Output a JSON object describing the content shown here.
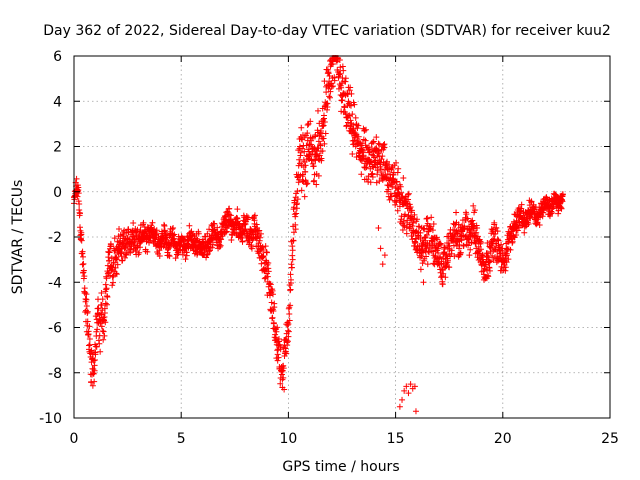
{
  "chart_data": {
    "type": "scatter",
    "title": "Day 362 of 2022, Sidereal Day-to-day VTEC variation (SDTVAR) for receiver kuu2",
    "xlabel": "GPS time / hours",
    "ylabel": "SDTVAR / TECUs",
    "xlim": [
      0,
      25
    ],
    "ylim": [
      -10,
      6
    ],
    "xticks": [
      0,
      5,
      10,
      15,
      20,
      25
    ],
    "yticks": [
      -10,
      -8,
      -6,
      -4,
      -2,
      0,
      2,
      4,
      6
    ],
    "xtick_labels": [
      "0",
      "5",
      "10",
      "15",
      "20",
      "25"
    ],
    "ytick_labels": [
      "-10",
      "-8",
      "-6",
      "-4",
      "-2",
      "0",
      "2",
      "4",
      "6"
    ],
    "grid": true,
    "marker": "+",
    "series": [
      {
        "name": "SDTVAR",
        "color": "#ff0000",
        "trace": [
          [
            0.0,
            -0.5
          ],
          [
            0.1,
            0.2
          ],
          [
            0.2,
            0.0
          ],
          [
            0.3,
            -1.5
          ],
          [
            0.4,
            -3.0
          ],
          [
            0.5,
            -4.5
          ],
          [
            0.6,
            -5.5
          ],
          [
            0.7,
            -6.5
          ],
          [
            0.8,
            -7.5
          ],
          [
            0.9,
            -8.0
          ],
          [
            1.0,
            -7.0
          ],
          [
            1.1,
            -5.5
          ],
          [
            1.2,
            -6.5
          ],
          [
            1.3,
            -5.0
          ],
          [
            1.4,
            -6.0
          ],
          [
            1.5,
            -4.5
          ],
          [
            1.6,
            -3.5
          ],
          [
            1.7,
            -2.8
          ],
          [
            1.8,
            -3.5
          ],
          [
            1.9,
            -2.5
          ],
          [
            2.0,
            -3.0
          ],
          [
            2.1,
            -2.2
          ],
          [
            2.2,
            -2.8
          ],
          [
            2.3,
            -2.0
          ],
          [
            2.4,
            -2.6
          ],
          [
            2.5,
            -1.8
          ],
          [
            2.6,
            -2.4
          ],
          [
            2.8,
            -2.0
          ],
          [
            3.0,
            -2.5
          ],
          [
            3.2,
            -1.8
          ],
          [
            3.4,
            -2.2
          ],
          [
            3.6,
            -1.6
          ],
          [
            3.8,
            -2.0
          ],
          [
            4.0,
            -2.3
          ],
          [
            4.2,
            -1.9
          ],
          [
            4.4,
            -2.4
          ],
          [
            4.6,
            -2.0
          ],
          [
            4.8,
            -2.6
          ],
          [
            5.0,
            -2.2
          ],
          [
            5.2,
            -2.5
          ],
          [
            5.4,
            -2.0
          ],
          [
            5.6,
            -2.4
          ],
          [
            5.8,
            -2.2
          ],
          [
            6.0,
            -2.6
          ],
          [
            6.2,
            -2.3
          ],
          [
            6.4,
            -2.0
          ],
          [
            6.6,
            -1.8
          ],
          [
            6.8,
            -2.2
          ],
          [
            7.0,
            -1.5
          ],
          [
            7.2,
            -1.2
          ],
          [
            7.4,
            -1.6
          ],
          [
            7.6,
            -1.3
          ],
          [
            7.8,
            -1.8
          ],
          [
            8.0,
            -1.5
          ],
          [
            8.2,
            -2.0
          ],
          [
            8.4,
            -1.6
          ],
          [
            8.6,
            -2.2
          ],
          [
            8.8,
            -2.8
          ],
          [
            9.0,
            -3.5
          ],
          [
            9.1,
            -4.2
          ],
          [
            9.2,
            -4.8
          ],
          [
            9.3,
            -5.5
          ],
          [
            9.4,
            -6.2
          ],
          [
            9.5,
            -6.8
          ],
          [
            9.6,
            -7.4
          ],
          [
            9.7,
            -8.0
          ],
          [
            9.8,
            -7.6
          ],
          [
            9.9,
            -6.8
          ],
          [
            10.0,
            -5.5
          ],
          [
            10.1,
            -4.0
          ],
          [
            10.2,
            -2.5
          ],
          [
            10.3,
            -1.0
          ],
          [
            10.4,
            0.2
          ],
          [
            10.5,
            1.0
          ],
          [
            10.6,
            1.6
          ],
          [
            10.8,
            1.2
          ],
          [
            11.0,
            2.0
          ],
          [
            11.2,
            1.4
          ],
          [
            11.4,
            2.2
          ],
          [
            11.5,
            1.5
          ],
          [
            11.6,
            2.8
          ],
          [
            11.7,
            3.5
          ],
          [
            11.8,
            4.2
          ],
          [
            11.9,
            4.8
          ],
          [
            12.0,
            5.2
          ],
          [
            12.1,
            5.6
          ],
          [
            12.2,
            5.8
          ],
          [
            12.3,
            5.5
          ],
          [
            12.4,
            5.0
          ],
          [
            12.5,
            4.6
          ],
          [
            12.6,
            4.0
          ],
          [
            12.8,
            3.5
          ],
          [
            13.0,
            2.8
          ],
          [
            13.2,
            2.2
          ],
          [
            13.4,
            1.8
          ],
          [
            13.6,
            1.5
          ],
          [
            13.8,
            1.0
          ],
          [
            14.0,
            1.4
          ],
          [
            14.2,
            1.8
          ],
          [
            14.4,
            1.2
          ],
          [
            14.6,
            0.8
          ],
          [
            14.8,
            0.4
          ],
          [
            15.0,
            0.2
          ],
          [
            15.2,
            -0.2
          ],
          [
            15.4,
            -0.6
          ],
          [
            15.6,
            -1.0
          ],
          [
            15.8,
            -1.4
          ],
          [
            16.0,
            -2.0
          ],
          [
            16.2,
            -2.6
          ],
          [
            16.4,
            -2.2
          ],
          [
            16.6,
            -1.8
          ],
          [
            16.8,
            -2.4
          ],
          [
            17.0,
            -2.8
          ],
          [
            17.2,
            -3.4
          ],
          [
            17.4,
            -2.8
          ],
          [
            17.6,
            -2.2
          ],
          [
            17.8,
            -1.8
          ],
          [
            18.0,
            -2.4
          ],
          [
            18.2,
            -1.6
          ],
          [
            18.4,
            -2.0
          ],
          [
            18.6,
            -1.4
          ],
          [
            18.8,
            -2.2
          ],
          [
            19.0,
            -2.8
          ],
          [
            19.2,
            -3.4
          ],
          [
            19.4,
            -2.6
          ],
          [
            19.6,
            -2.0
          ],
          [
            19.8,
            -2.6
          ],
          [
            20.0,
            -3.2
          ],
          [
            20.2,
            -2.6
          ],
          [
            20.4,
            -1.8
          ],
          [
            20.6,
            -1.4
          ],
          [
            20.8,
            -1.0
          ],
          [
            21.0,
            -1.4
          ],
          [
            21.2,
            -1.0
          ],
          [
            21.4,
            -0.6
          ],
          [
            21.6,
            -1.2
          ],
          [
            21.8,
            -0.8
          ],
          [
            22.0,
            -0.4
          ],
          [
            22.2,
            -0.8
          ],
          [
            22.4,
            -0.3
          ],
          [
            22.6,
            -0.6
          ],
          [
            22.8,
            -0.3
          ]
        ],
        "spread": [
          [
            0.0,
            0.4
          ],
          [
            1.0,
            1.4
          ],
          [
            2.0,
            0.9
          ],
          [
            4.0,
            0.6
          ],
          [
            6.0,
            0.6
          ],
          [
            8.0,
            0.7
          ],
          [
            9.5,
            1.2
          ],
          [
            10.5,
            1.6
          ],
          [
            12.0,
            1.6
          ],
          [
            14.0,
            1.4
          ],
          [
            15.5,
            1.3
          ],
          [
            17.0,
            1.0
          ],
          [
            19.0,
            1.1
          ],
          [
            21.0,
            0.6
          ],
          [
            23.0,
            0.4
          ]
        ],
        "outliers": [
          [
            15.2,
            -9.5
          ],
          [
            15.3,
            -9.2
          ],
          [
            15.4,
            -8.8
          ],
          [
            15.5,
            -8.6
          ],
          [
            15.6,
            -8.9
          ],
          [
            15.7,
            -8.5
          ],
          [
            15.8,
            -8.7
          ],
          [
            15.9,
            -8.6
          ],
          [
            15.95,
            -9.7
          ],
          [
            14.2,
            -1.6
          ],
          [
            14.3,
            -2.5
          ],
          [
            14.4,
            -3.2
          ],
          [
            14.5,
            -2.8
          ],
          [
            16.3,
            -4.0
          ],
          [
            16.5,
            -3.2
          ]
        ]
      }
    ]
  }
}
